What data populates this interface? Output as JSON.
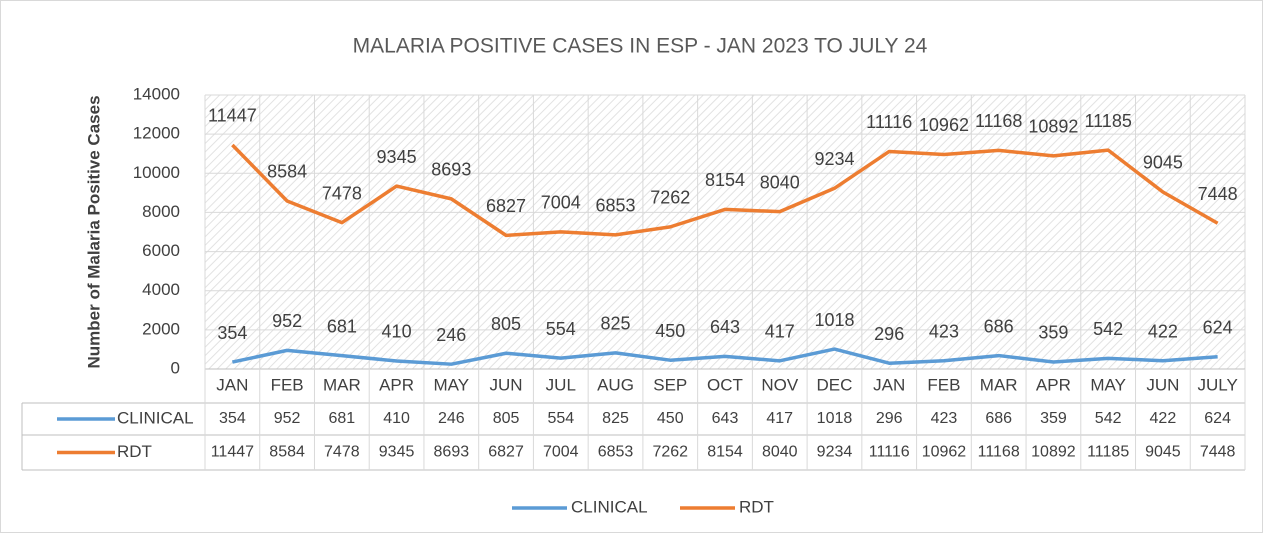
{
  "chart_data": {
    "type": "line",
    "title": "MALARIA POSITIVE CASES IN ESP - JAN 2023 TO JULY 24",
    "y_label": "Number of Malaria Positive Cases",
    "categories": [
      "JAN",
      "FEB",
      "MAR",
      "APR",
      "MAY",
      "JUN",
      "JUL",
      "AUG",
      "SEP",
      "OCT",
      "NOV",
      "DEC",
      "JAN",
      "FEB",
      "MAR",
      "APR",
      "MAY",
      "JUN",
      "JULY"
    ],
    "series": [
      {
        "name": "CLINICAL",
        "color": "#5b9bd5",
        "values": [
          354,
          952,
          681,
          410,
          246,
          805,
          554,
          825,
          450,
          643,
          417,
          1018,
          296,
          423,
          686,
          359,
          542,
          422,
          624
        ]
      },
      {
        "name": "RDT",
        "color": "#ed7d31",
        "values": [
          11447,
          8584,
          7478,
          9345,
          8693,
          6827,
          7004,
          6853,
          7262,
          8154,
          8040,
          9234,
          11116,
          10962,
          11168,
          10892,
          11185,
          9045,
          7448
        ]
      }
    ],
    "ylim": [
      0,
      14000
    ],
    "yticks": [
      0,
      2000,
      4000,
      6000,
      8000,
      10000,
      12000,
      14000
    ],
    "grid": true,
    "legend": "bottom",
    "data_table": true
  }
}
